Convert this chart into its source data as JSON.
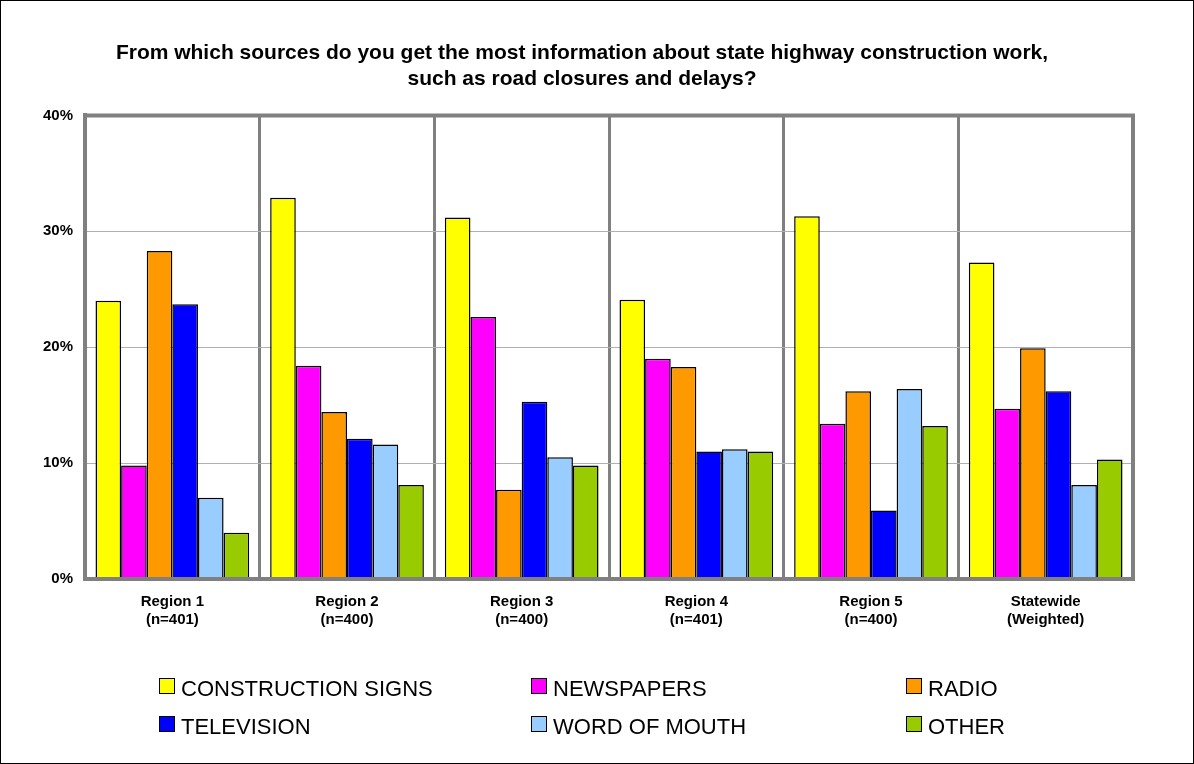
{
  "chart_data": {
    "type": "bar",
    "title": "From which sources do you get the most information about state highway construction work, such as road closures and delays?",
    "categories": [
      "Region 1\n(n=401)",
      "Region 2\n(n=400)",
      "Region 3\n(n=400)",
      "Region 4\n(n=401)",
      "Region 5\n(n=400)",
      "Statewide\n(Weighted)"
    ],
    "series": [
      {
        "name": "CONSTRUCTION SIGNS",
        "color": "#ffff00",
        "values": [
          24.0,
          32.9,
          31.2,
          24.1,
          31.3,
          27.3
        ]
      },
      {
        "name": "NEWSPAPERS",
        "color": "#ff00ff",
        "values": [
          9.8,
          18.4,
          22.6,
          19.0,
          13.4,
          14.7
        ]
      },
      {
        "name": "RADIO",
        "color": "#ff9900",
        "values": [
          28.3,
          14.4,
          7.7,
          18.3,
          16.2,
          19.9
        ]
      },
      {
        "name": "TELEVISION",
        "color": "#0000ff",
        "values": [
          23.7,
          12.1,
          15.3,
          11.0,
          5.9,
          16.2
        ]
      },
      {
        "name": "WORD OF MOUTH",
        "color": "#99ccff",
        "values": [
          7.0,
          11.6,
          10.5,
          11.2,
          16.4,
          8.1
        ]
      },
      {
        "name": "OTHER",
        "color": "#99cc00",
        "values": [
          4.0,
          8.1,
          9.8,
          11.0,
          13.2,
          10.3
        ]
      }
    ],
    "ylim": [
      0,
      40
    ],
    "yticks": [
      {
        "value": 0,
        "label": "0%"
      },
      {
        "value": 10,
        "label": "10%"
      },
      {
        "value": 20,
        "label": "20%"
      },
      {
        "value": 30,
        "label": "30%"
      },
      {
        "value": 40,
        "label": "40%"
      }
    ],
    "grid": true,
    "legend": "bottom"
  }
}
